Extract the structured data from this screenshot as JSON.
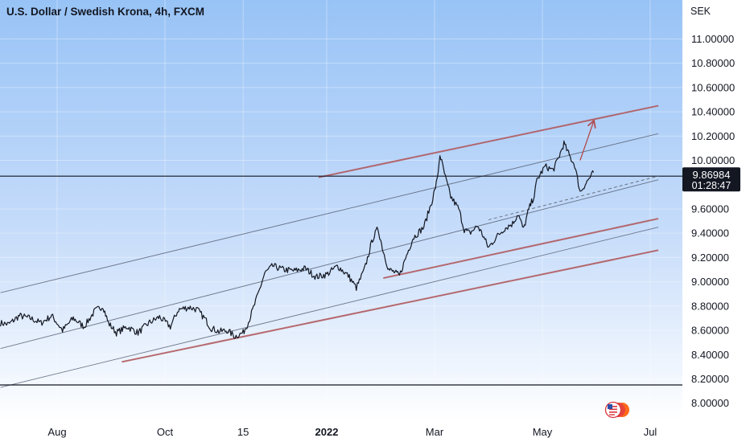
{
  "chart_data": {
    "type": "line",
    "title": "U.S. Dollar / Swedish Krona, 4h, FXCM",
    "instrument": "U.S. Dollar / Swedish Krona",
    "timeframe": "4h",
    "source": "FXCM",
    "y_axis_unit": "SEK",
    "y_ticks": [
      "11.00000",
      "10.80000",
      "10.60000",
      "10.40000",
      "10.20000",
      "10.00000",
      "9.60000",
      "9.40000",
      "9.20000",
      "9.00000",
      "8.80000",
      "8.60000",
      "8.40000",
      "8.20000",
      "8.00000"
    ],
    "x_ticks": [
      {
        "label": "Aug",
        "t": 1.0
      },
      {
        "label": "Oct",
        "t": 3.0
      },
      {
        "label": "15",
        "t": 4.45
      },
      {
        "label": "2022",
        "t": 6.0
      },
      {
        "label": "Mar",
        "t": 8.0
      },
      {
        "label": "May",
        "t": 10.0
      },
      {
        "label": "Jul",
        "t": 12.0
      }
    ],
    "ylim": [
      7.92,
      11.2
    ],
    "current_price": "9.86984",
    "countdown": "01:28:47",
    "series": [
      {
        "points": [
          [
            -0.05,
            8.66
          ],
          [
            0.1,
            8.65
          ],
          [
            0.3,
            8.72
          ],
          [
            0.5,
            8.7
          ],
          [
            0.7,
            8.66
          ],
          [
            0.9,
            8.72
          ],
          [
            1.1,
            8.6
          ],
          [
            1.3,
            8.7
          ],
          [
            1.5,
            8.63
          ],
          [
            1.7,
            8.76
          ],
          [
            1.85,
            8.8
          ],
          [
            1.95,
            8.66
          ],
          [
            2.1,
            8.58
          ],
          [
            2.3,
            8.63
          ],
          [
            2.5,
            8.58
          ],
          [
            2.7,
            8.66
          ],
          [
            2.9,
            8.71
          ],
          [
            3.1,
            8.63
          ],
          [
            3.25,
            8.77
          ],
          [
            3.45,
            8.79
          ],
          [
            3.6,
            8.77
          ],
          [
            3.75,
            8.69
          ],
          [
            3.85,
            8.62
          ],
          [
            4.0,
            8.59
          ],
          [
            4.15,
            8.6
          ],
          [
            4.3,
            8.55
          ],
          [
            4.45,
            8.58
          ],
          [
            4.55,
            8.67
          ],
          [
            4.7,
            8.86
          ],
          [
            4.85,
            9.07
          ],
          [
            5.0,
            9.13
          ],
          [
            5.2,
            9.1
          ],
          [
            5.4,
            9.09
          ],
          [
            5.6,
            9.11
          ],
          [
            5.8,
            9.04
          ],
          [
            6.0,
            9.06
          ],
          [
            6.2,
            9.13
          ],
          [
            6.4,
            9.05
          ],
          [
            6.55,
            8.95
          ],
          [
            6.7,
            9.1
          ],
          [
            6.85,
            9.35
          ],
          [
            6.95,
            9.44
          ],
          [
            7.05,
            9.25
          ],
          [
            7.15,
            9.1
          ],
          [
            7.25,
            9.08
          ],
          [
            7.35,
            9.05
          ],
          [
            7.5,
            9.24
          ],
          [
            7.6,
            9.36
          ],
          [
            7.8,
            9.45
          ],
          [
            7.95,
            9.66
          ],
          [
            8.05,
            9.84
          ],
          [
            8.1,
            10.05
          ],
          [
            8.2,
            9.86
          ],
          [
            8.3,
            9.7
          ],
          [
            8.45,
            9.6
          ],
          [
            8.55,
            9.43
          ],
          [
            8.65,
            9.4
          ],
          [
            8.8,
            9.46
          ],
          [
            8.9,
            9.38
          ],
          [
            9.0,
            9.28
          ],
          [
            9.15,
            9.37
          ],
          [
            9.3,
            9.44
          ],
          [
            9.45,
            9.48
          ],
          [
            9.55,
            9.56
          ],
          [
            9.65,
            9.43
          ],
          [
            9.75,
            9.6
          ],
          [
            9.85,
            9.71
          ],
          [
            9.9,
            9.84
          ],
          [
            10.05,
            9.95
          ],
          [
            10.2,
            9.92
          ],
          [
            10.3,
            10.02
          ],
          [
            10.4,
            10.14
          ],
          [
            10.5,
            10.04
          ],
          [
            10.6,
            9.96
          ],
          [
            10.7,
            9.74
          ],
          [
            10.85,
            9.84
          ],
          [
            10.95,
            9.9
          ]
        ]
      }
    ],
    "annotations": {
      "horizontal_lines": [
        9.86984,
        8.15
      ],
      "channel_lines": [
        {
          "color": "brown",
          "from": [
            5.85,
            9.86
          ],
          "to": [
            12.15,
            10.45
          ]
        },
        {
          "color": "brown",
          "from": [
            7.05,
            9.03
          ],
          "to": [
            12.15,
            9.52
          ]
        },
        {
          "color": "brown",
          "from": [
            2.2,
            8.34
          ],
          "to": [
            12.15,
            9.26
          ]
        },
        {
          "color": "gray",
          "from": [
            -0.05,
            8.91
          ],
          "to": [
            12.15,
            10.22
          ]
        },
        {
          "color": "gray",
          "from": [
            -0.05,
            8.45
          ],
          "to": [
            12.15,
            9.84
          ]
        },
        {
          "color": "gray",
          "from": [
            -0.05,
            8.13
          ],
          "to": [
            12.15,
            9.45
          ]
        }
      ],
      "dashed_line": {
        "from": [
          9.0,
          9.51
        ],
        "to": [
          12.15,
          9.87
        ]
      },
      "arrow": {
        "from": [
          10.7,
          10.0
        ],
        "to": [
          10.95,
          10.32
        ]
      }
    },
    "grid": true,
    "background": "light blue vertical gradient"
  }
}
